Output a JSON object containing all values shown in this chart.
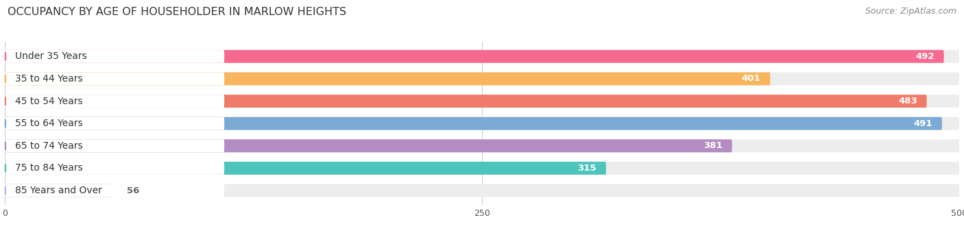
{
  "title": "OCCUPANCY BY AGE OF HOUSEHOLDER IN MARLOW HEIGHTS",
  "source": "Source: ZipAtlas.com",
  "categories": [
    "Under 35 Years",
    "35 to 44 Years",
    "45 to 54 Years",
    "55 to 64 Years",
    "65 to 74 Years",
    "75 to 84 Years",
    "85 Years and Over"
  ],
  "values": [
    492,
    401,
    483,
    491,
    381,
    315,
    56
  ],
  "bar_colors": [
    "#F76A8F",
    "#F9B45E",
    "#EF7B6A",
    "#7BAAD4",
    "#B48CC4",
    "#4DC5BC",
    "#B3B8E8"
  ],
  "bar_bg_colors": [
    "#EDEDED",
    "#EDEDED",
    "#EDEDED",
    "#EDEDED",
    "#EDEDED",
    "#EDEDED",
    "#EDEDED"
  ],
  "label_dot_colors": [
    "#F76A8F",
    "#F9B45E",
    "#EF7B6A",
    "#7BAAD4",
    "#B48CC4",
    "#4DC5BC",
    "#B3B8E8"
  ],
  "xlim": [
    0,
    500
  ],
  "xticks": [
    0,
    250,
    500
  ],
  "title_fontsize": 11.5,
  "source_fontsize": 9,
  "label_fontsize": 10,
  "value_fontsize": 9.5,
  "background_color": "#ffffff"
}
